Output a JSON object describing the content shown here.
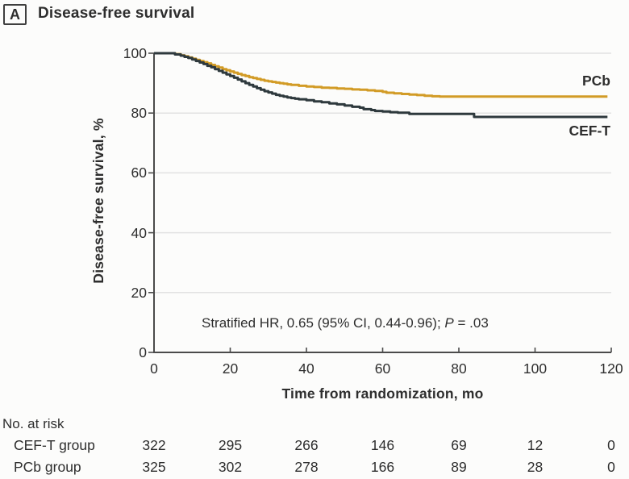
{
  "panel": {
    "label": "A",
    "title": "Disease-free survival"
  },
  "chart_data": {
    "type": "line",
    "subtype": "kaplan-meier-step-curves",
    "title": "Disease-free survival",
    "xlabel": "Time from randomization, mo",
    "ylabel": "Disease-free survival, %",
    "xlim": [
      0,
      120
    ],
    "ylim": [
      0,
      100
    ],
    "xticks": [
      0,
      20,
      40,
      60,
      80,
      100,
      120
    ],
    "yticks": [
      100,
      80,
      60,
      40,
      20,
      0
    ],
    "grid": "horizontal-light-gray",
    "legend_position": "labels-at-end-of-curves",
    "annotation": {
      "prefix": "Stratified HR, 0.65 (95% CI, 0.44-0.96); ",
      "p_label": "P",
      "suffix": " = .03"
    },
    "series": [
      {
        "name": "PCb",
        "color": "#D29B26",
        "points": [
          [
            0,
            100
          ],
          [
            4.5,
            100
          ],
          [
            5.5,
            99.7
          ],
          [
            7,
            99.3
          ],
          [
            8,
            99
          ],
          [
            9,
            98.6
          ],
          [
            10,
            98.2
          ],
          [
            11,
            97.8
          ],
          [
            12,
            97.4
          ],
          [
            13,
            97
          ],
          [
            14,
            96.6
          ],
          [
            15,
            96.1
          ],
          [
            16,
            95.6
          ],
          [
            17,
            95.2
          ],
          [
            18,
            94.7
          ],
          [
            19,
            94.3
          ],
          [
            20,
            93.9
          ],
          [
            21,
            93.5
          ],
          [
            22,
            93.1
          ],
          [
            23,
            92.7
          ],
          [
            24,
            92.4
          ],
          [
            25,
            92
          ],
          [
            26,
            91.7
          ],
          [
            27,
            91.4
          ],
          [
            28,
            91.1
          ],
          [
            29,
            90.8
          ],
          [
            30,
            90.6
          ],
          [
            31,
            90.4
          ],
          [
            32,
            90.2
          ],
          [
            33,
            90
          ],
          [
            34,
            89.8
          ],
          [
            35,
            89.6
          ],
          [
            36,
            89.4
          ],
          [
            38,
            89.1
          ],
          [
            40,
            88.9
          ],
          [
            42,
            88.7
          ],
          [
            44,
            88.5
          ],
          [
            46,
            88.4
          ],
          [
            48,
            88.2
          ],
          [
            50,
            88.1
          ],
          [
            52,
            87.9
          ],
          [
            54,
            87.8
          ],
          [
            56,
            87.6
          ],
          [
            58,
            87.4
          ],
          [
            60,
            87.1
          ],
          [
            61,
            86.8
          ],
          [
            63,
            86.6
          ],
          [
            65,
            86.4
          ],
          [
            67,
            86.2
          ],
          [
            69,
            86
          ],
          [
            71,
            85.8
          ],
          [
            73,
            85.6
          ],
          [
            75,
            85.5
          ],
          [
            119,
            85.5
          ]
        ]
      },
      {
        "name": "CEF-T",
        "color": "#2E393D",
        "points": [
          [
            0,
            100
          ],
          [
            4.5,
            100
          ],
          [
            5.5,
            99.6
          ],
          [
            7,
            99.2
          ],
          [
            8,
            98.8
          ],
          [
            9,
            98.4
          ],
          [
            10,
            97.9
          ],
          [
            11,
            97.4
          ],
          [
            12,
            96.9
          ],
          [
            13,
            96.4
          ],
          [
            14,
            95.8
          ],
          [
            15,
            95.3
          ],
          [
            16,
            94.7
          ],
          [
            17,
            94.1
          ],
          [
            18,
            93.5
          ],
          [
            19,
            92.9
          ],
          [
            20,
            92.4
          ],
          [
            21,
            91.8
          ],
          [
            22,
            91.2
          ],
          [
            23,
            90.6
          ],
          [
            24,
            90
          ],
          [
            25,
            89.4
          ],
          [
            26,
            88.9
          ],
          [
            27,
            88.3
          ],
          [
            28,
            87.8
          ],
          [
            29,
            87.3
          ],
          [
            30,
            86.9
          ],
          [
            31,
            86.5
          ],
          [
            32,
            86.1
          ],
          [
            33,
            85.8
          ],
          [
            34,
            85.5
          ],
          [
            35,
            85.2
          ],
          [
            36,
            85
          ],
          [
            37,
            84.8
          ],
          [
            38,
            84.6
          ],
          [
            40,
            84.3
          ],
          [
            42,
            83.9
          ],
          [
            44,
            83.6
          ],
          [
            46,
            83.2
          ],
          [
            48,
            82.9
          ],
          [
            50,
            82.5
          ],
          [
            52,
            82.1
          ],
          [
            54,
            81.8
          ],
          [
            55,
            81.3
          ],
          [
            57,
            81
          ],
          [
            58,
            80.7
          ],
          [
            60,
            80.5
          ],
          [
            62,
            80.3
          ],
          [
            64,
            80.1
          ],
          [
            67,
            79.7
          ],
          [
            83,
            79.7
          ],
          [
            84,
            78.7
          ],
          [
            119,
            78.7
          ]
        ]
      }
    ]
  },
  "risk_table": {
    "header": "No. at risk",
    "time_points": [
      0,
      20,
      40,
      60,
      80,
      100,
      120
    ],
    "rows": [
      {
        "label": "CEF-T group",
        "values": [
          "322",
          "295",
          "266",
          "146",
          "69",
          "12",
          "0"
        ]
      },
      {
        "label": "PCb group",
        "values": [
          "325",
          "302",
          "278",
          "166",
          "89",
          "28",
          "0"
        ]
      }
    ]
  },
  "colors": {
    "pcb_curve": "#D29B26",
    "ceft_curve": "#2E393D",
    "text": "#2E2E2E",
    "gridline": "#E2E2E2",
    "axis": "#4B4B4B",
    "background": "#FCFCFB"
  }
}
